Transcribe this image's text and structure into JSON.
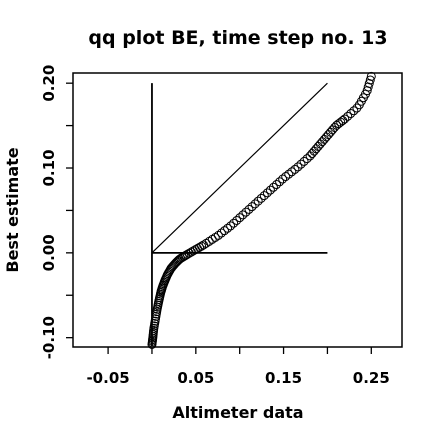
{
  "chart_data": {
    "type": "scatter",
    "title": "qq plot BE, time step no. 13",
    "xlabel": "Altimeter data",
    "ylabel": "Best estimate",
    "xlim": [
      -0.09,
      0.285
    ],
    "ylim": [
      -0.111,
      0.212
    ],
    "x_ticks": [
      -0.05,
      0.0,
      0.05,
      0.1,
      0.15,
      0.2,
      0.25
    ],
    "x_tick_labels": [
      "-0.05",
      "",
      "0.05",
      "",
      "0.15",
      "",
      "0.25"
    ],
    "y_ticks": [
      -0.1,
      -0.05,
      0.0,
      0.05,
      0.1,
      0.15,
      0.2
    ],
    "y_tick_labels": [
      "-0.10",
      "",
      "0.00",
      "",
      "0.10",
      "",
      "0.20"
    ],
    "marker": "open-circle",
    "grid": false,
    "reference_lines": [
      {
        "kind": "identity",
        "from": [
          0.0,
          0.0
        ],
        "to": [
          0.2,
          0.2
        ]
      },
      {
        "kind": "vertical",
        "from": [
          0.0,
          -0.11
        ],
        "to": [
          0.0,
          0.2
        ]
      },
      {
        "kind": "horizontal",
        "from": [
          0.0,
          0.0
        ],
        "to": [
          0.2,
          0.0
        ]
      }
    ],
    "curve_anchors": {
      "x": [
        0.0,
        0.001,
        0.002,
        0.004,
        0.006,
        0.008,
        0.01,
        0.012,
        0.015,
        0.018,
        0.022,
        0.027,
        0.032,
        0.04,
        0.05,
        0.06,
        0.075,
        0.09,
        0.105,
        0.12,
        0.135,
        0.15,
        0.165,
        0.18,
        0.19,
        0.2,
        0.21,
        0.22,
        0.235,
        0.245,
        0.25
      ],
      "y": [
        -0.108,
        -0.1,
        -0.09,
        -0.078,
        -0.066,
        -0.056,
        -0.047,
        -0.04,
        -0.032,
        -0.025,
        -0.018,
        -0.012,
        -0.007,
        -0.002,
        0.004,
        0.01,
        0.02,
        0.032,
        0.046,
        0.06,
        0.074,
        0.088,
        0.1,
        0.114,
        0.126,
        0.138,
        0.15,
        0.158,
        0.172,
        0.19,
        0.208
      ]
    },
    "n_points": 130
  }
}
